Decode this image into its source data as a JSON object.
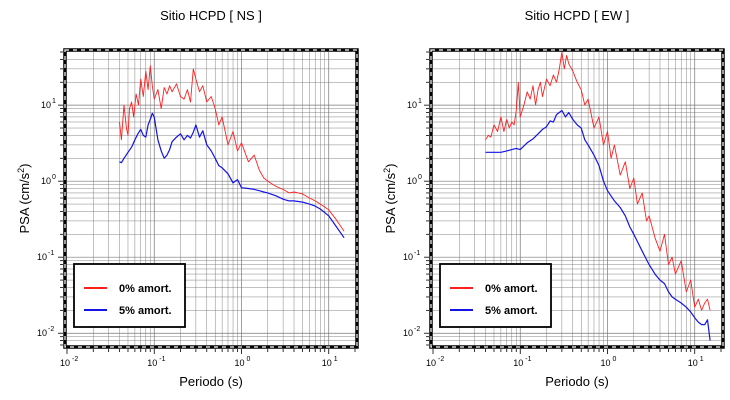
{
  "chart_data": [
    {
      "type": "line",
      "title": "Sitio HCPD [ NS ]",
      "xlabel": "Periodo (s)",
      "ylabel_main": "PSA (cm/s",
      "ylabel_sup": "2",
      "ylabel_end": ")",
      "x_scale": "log",
      "y_scale": "log",
      "xlim": [
        0.01,
        20
      ],
      "ylim": [
        0.007,
        50
      ],
      "grid": true,
      "legend_position": "bottom-left",
      "x_ticks": [
        {
          "base": "10",
          "exp": "-2"
        },
        {
          "base": "10",
          "exp": "-1"
        },
        {
          "base": "10",
          "exp": "0"
        },
        {
          "base": "10",
          "exp": "1"
        }
      ],
      "y_ticks": [
        {
          "base": "10",
          "exp": "-2"
        },
        {
          "base": "10",
          "exp": "-1"
        },
        {
          "base": "10",
          "exp": "0"
        },
        {
          "base": "10",
          "exp": "1"
        }
      ],
      "series": [
        {
          "name": "0% amort.",
          "color": "#ff2020",
          "x": [
            0.04,
            0.042,
            0.045,
            0.048,
            0.05,
            0.052,
            0.055,
            0.058,
            0.062,
            0.066,
            0.07,
            0.075,
            0.08,
            0.085,
            0.09,
            0.095,
            0.1,
            0.11,
            0.12,
            0.13,
            0.14,
            0.15,
            0.16,
            0.18,
            0.2,
            0.22,
            0.24,
            0.26,
            0.28,
            0.3,
            0.33,
            0.36,
            0.4,
            0.45,
            0.5,
            0.55,
            0.6,
            0.7,
            0.8,
            0.9,
            1.0,
            1.2,
            1.4,
            1.6,
            1.8,
            2.0,
            2.5,
            3.0,
            3.5,
            4.0,
            5.0,
            6.0,
            7.0,
            8.0,
            10.0,
            12.0,
            15.0
          ],
          "values": [
            6,
            3.5,
            10,
            5,
            4,
            9,
            11,
            7,
            14,
            10,
            22,
            13,
            28,
            16,
            33,
            18,
            12,
            16,
            9,
            17,
            14,
            18,
            15,
            19,
            13,
            12,
            16,
            11,
            30,
            22,
            15,
            18,
            11,
            13,
            9,
            5.5,
            7,
            3,
            4.5,
            2.5,
            3.2,
            1.8,
            2.2,
            1.4,
            1.1,
            1.0,
            0.85,
            0.78,
            0.7,
            0.72,
            0.68,
            0.6,
            0.55,
            0.5,
            0.42,
            0.32,
            0.22
          ]
        },
        {
          "name": "5% amort.",
          "color": "#1414e6",
          "x": [
            0.04,
            0.042,
            0.045,
            0.05,
            0.055,
            0.06,
            0.065,
            0.07,
            0.075,
            0.08,
            0.085,
            0.09,
            0.095,
            0.1,
            0.11,
            0.12,
            0.13,
            0.14,
            0.15,
            0.16,
            0.18,
            0.2,
            0.22,
            0.24,
            0.26,
            0.28,
            0.3,
            0.33,
            0.36,
            0.4,
            0.45,
            0.5,
            0.55,
            0.6,
            0.7,
            0.8,
            0.9,
            1.0,
            1.2,
            1.4,
            1.6,
            1.8,
            2.0,
            2.5,
            3.0,
            3.5,
            4.0,
            5.0,
            6.0,
            7.0,
            8.0,
            10.0,
            12.0,
            15.0
          ],
          "values": [
            1.8,
            1.75,
            2.0,
            2.4,
            2.8,
            3.5,
            4.2,
            4.8,
            4.0,
            3.8,
            5.5,
            6.5,
            7.8,
            7.0,
            3.5,
            2.5,
            2.0,
            2.2,
            2.6,
            3.3,
            3.8,
            4.2,
            3.5,
            4.0,
            3.7,
            4.4,
            5.5,
            3.8,
            4.6,
            3.0,
            2.5,
            2.0,
            1.6,
            1.5,
            1.25,
            0.95,
            1.05,
            0.82,
            0.8,
            0.78,
            0.75,
            0.72,
            0.7,
            0.64,
            0.58,
            0.55,
            0.55,
            0.53,
            0.5,
            0.47,
            0.43,
            0.35,
            0.26,
            0.18
          ]
        }
      ]
    },
    {
      "type": "line",
      "title": "Sitio HCPD [ EW ]",
      "xlabel": "Periodo (s)",
      "ylabel_main": "PSA (cm/s",
      "ylabel_sup": "2",
      "ylabel_end": ")",
      "x_scale": "log",
      "y_scale": "log",
      "xlim": [
        0.01,
        20
      ],
      "ylim": [
        0.007,
        50
      ],
      "grid": true,
      "legend_position": "bottom-left",
      "x_ticks": [
        {
          "base": "10",
          "exp": "-2"
        },
        {
          "base": "10",
          "exp": "-1"
        },
        {
          "base": "10",
          "exp": "0"
        },
        {
          "base": "10",
          "exp": "1"
        }
      ],
      "y_ticks": [
        {
          "base": "10",
          "exp": "-2"
        },
        {
          "base": "10",
          "exp": "-1"
        },
        {
          "base": "10",
          "exp": "0"
        },
        {
          "base": "10",
          "exp": "1"
        }
      ],
      "series": [
        {
          "name": "0% amort.",
          "color": "#ff2020",
          "x": [
            0.04,
            0.043,
            0.046,
            0.05,
            0.055,
            0.06,
            0.065,
            0.07,
            0.075,
            0.08,
            0.085,
            0.09,
            0.095,
            0.1,
            0.11,
            0.12,
            0.13,
            0.14,
            0.15,
            0.16,
            0.17,
            0.18,
            0.2,
            0.22,
            0.24,
            0.26,
            0.28,
            0.3,
            0.32,
            0.34,
            0.36,
            0.4,
            0.45,
            0.5,
            0.55,
            0.6,
            0.7,
            0.8,
            0.9,
            1.0,
            1.1,
            1.2,
            1.4,
            1.6,
            1.8,
            2.0,
            2.2,
            2.5,
            2.8,
            3.0,
            3.5,
            4.0,
            4.5,
            5.0,
            5.5,
            6.0,
            7.0,
            8.0,
            9.0,
            10.0,
            11.0,
            12.0,
            13.0,
            14.0,
            15.0
          ],
          "values": [
            3.5,
            4.0,
            3.8,
            5.5,
            4.5,
            7.0,
            4.5,
            6.5,
            5.0,
            6.0,
            5.5,
            8.5,
            20,
            7.0,
            10,
            15,
            12,
            18,
            10,
            16,
            20,
            13,
            22,
            18,
            25,
            20,
            30,
            50,
            30,
            45,
            35,
            28,
            20,
            16,
            10,
            12,
            5,
            7,
            3.0,
            4.5,
            2.0,
            3.0,
            1.2,
            1.8,
            0.8,
            1.1,
            0.5,
            0.7,
            0.3,
            0.35,
            0.18,
            0.12,
            0.2,
            0.08,
            0.1,
            0.06,
            0.09,
            0.035,
            0.05,
            0.022,
            0.028,
            0.02,
            0.025,
            0.028,
            0.02
          ]
        },
        {
          "name": "5% amort.",
          "color": "#1414e6",
          "x": [
            0.04,
            0.045,
            0.05,
            0.06,
            0.07,
            0.08,
            0.09,
            0.1,
            0.12,
            0.14,
            0.16,
            0.18,
            0.2,
            0.22,
            0.24,
            0.26,
            0.28,
            0.3,
            0.33,
            0.36,
            0.4,
            0.45,
            0.5,
            0.55,
            0.6,
            0.7,
            0.8,
            0.9,
            1.0,
            1.2,
            1.4,
            1.6,
            1.8,
            2.0,
            2.5,
            3.0,
            3.5,
            4.0,
            4.5,
            5.0,
            5.5,
            6.0,
            7.0,
            8.0,
            9.0,
            10.0,
            11.0,
            12.0,
            13.0,
            14.0,
            15.0
          ],
          "values": [
            2.4,
            2.4,
            2.4,
            2.4,
            2.5,
            2.6,
            2.7,
            2.6,
            3.2,
            3.6,
            4.2,
            4.8,
            5.2,
            6.2,
            6.0,
            7.5,
            8.0,
            8.5,
            7.0,
            8.0,
            6.5,
            5.5,
            5.0,
            3.5,
            3.0,
            2.2,
            1.6,
            1.0,
            0.75,
            0.55,
            0.45,
            0.35,
            0.25,
            0.2,
            0.12,
            0.08,
            0.06,
            0.05,
            0.045,
            0.035,
            0.03,
            0.028,
            0.025,
            0.022,
            0.019,
            0.016,
            0.014,
            0.013,
            0.013,
            0.015,
            0.008
          ]
        }
      ]
    }
  ]
}
